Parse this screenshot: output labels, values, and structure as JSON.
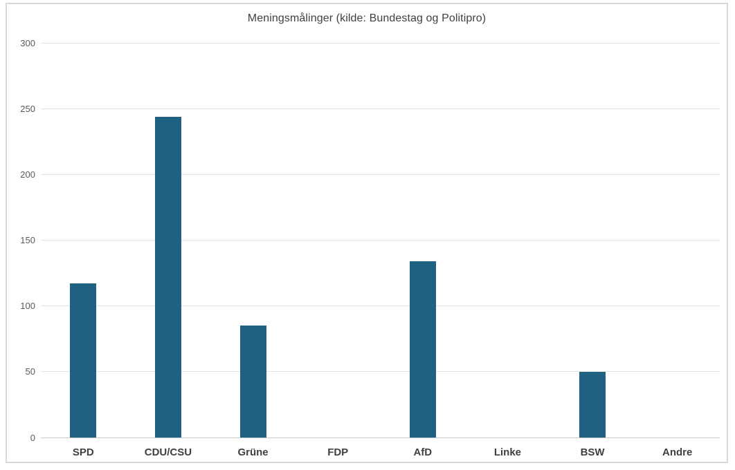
{
  "chart_data": {
    "type": "bar",
    "title": "Meningsmålinger (kilde: Bundestag og Politipro)",
    "categories": [
      "SPD",
      "CDU/CSU",
      "Grüne",
      "FDP",
      "AfD",
      "Linke",
      "BSW",
      "Andre"
    ],
    "values": [
      117,
      244,
      85,
      0,
      134,
      0,
      50,
      0
    ],
    "xlabel": "",
    "ylabel": "",
    "ylim": [
      0,
      300
    ],
    "yticks": [
      0,
      50,
      100,
      150,
      200,
      250,
      300
    ],
    "grid": true,
    "legend_position": "none",
    "colors": {
      "bar": "#1F6083",
      "gridline": "#E3E3E3",
      "axis_line": "#C8C8C8",
      "frame_border": "#D9D9D9",
      "tick_label": "#595959",
      "category_label": "#3F3F3F",
      "title": "#404040",
      "background": "#FFFFFF"
    }
  }
}
